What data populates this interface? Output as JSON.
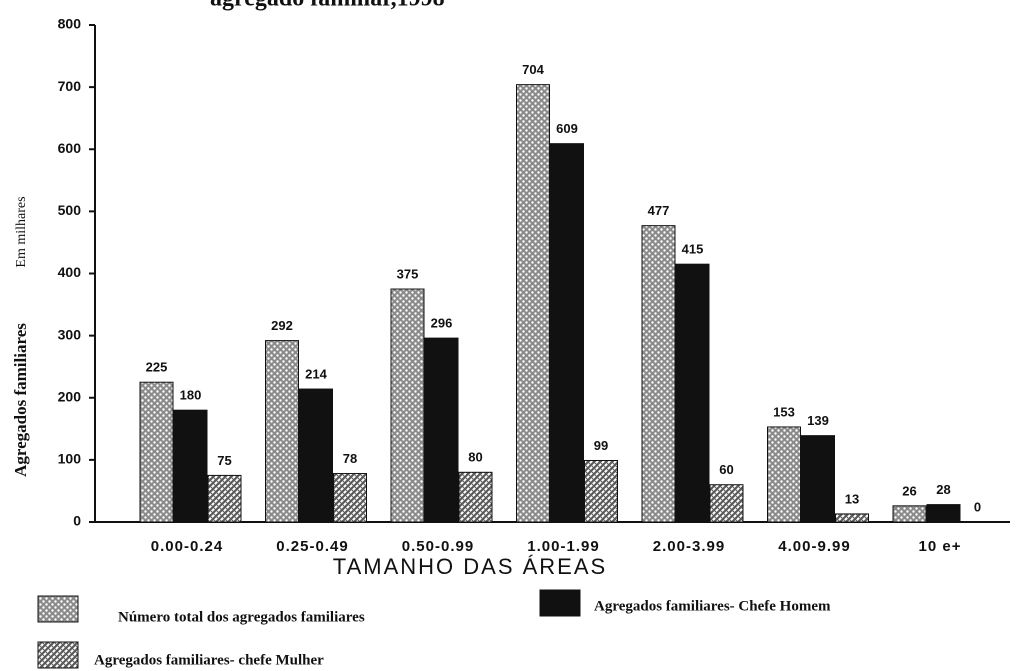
{
  "chart_data": {
    "type": "bar",
    "title": "agregado familiar,1998",
    "y_label": "Agregados familiares",
    "y_label_unit": "Em milhares",
    "x_label": "TAMANHO DAS ÁREAS",
    "categories": [
      "0.00-0.24",
      "0.25-0.49",
      "0.50-0.99",
      "1.00-1.99",
      "2.00-3.99",
      "4.00-9.99",
      "10 e+"
    ],
    "series": [
      {
        "name": "Número total  dos agregados familiares",
        "color": "#8a8a8a",
        "values": [
          225,
          292,
          375,
          704,
          477,
          153,
          26
        ]
      },
      {
        "name": "Agregados familiares- Chefe Homem",
        "color": "#111111",
        "values": [
          180,
          214,
          296,
          609,
          415,
          139,
          28
        ]
      },
      {
        "name": "Agregados familiares- chefe Mulher",
        "color": "#5a5a5a",
        "values": [
          75,
          78,
          80,
          99,
          60,
          13,
          0
        ]
      }
    ],
    "ylim": [
      0,
      800
    ],
    "yticks": [
      0,
      100,
      200,
      300,
      400,
      500,
      600,
      700,
      800
    ]
  }
}
